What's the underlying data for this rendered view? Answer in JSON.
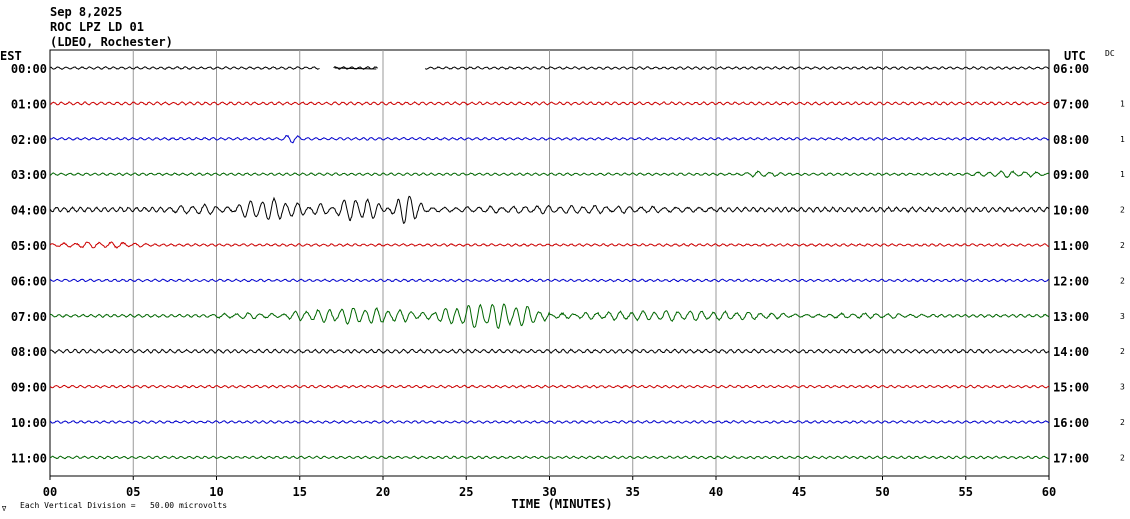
{
  "header": {
    "date": "Sep 8,2025",
    "station": "ROC LPZ LD 01",
    "network": "(LDEO, Rochester)"
  },
  "labels": {
    "left_zone": "EST",
    "right_zone": "UTC",
    "dc": "DC",
    "xlabel": "TIME (MINUTES)",
    "scale_note": "Each Vertical Division =   50.00 microvolts"
  },
  "colors": {
    "trace_cycle": [
      "#000000",
      "#cc0000",
      "#0000cc",
      "#006600"
    ],
    "grid": "#999999",
    "frame": "#000000"
  },
  "chart_data": {
    "type": "line",
    "title": "",
    "xlabel": "TIME (MINUTES)",
    "xlim": [
      0,
      60
    ],
    "x_ticks": [
      "00",
      "05",
      "10",
      "15",
      "20",
      "25",
      "30",
      "35",
      "40",
      "45",
      "50",
      "55",
      "60"
    ],
    "grid": true,
    "rows": [
      {
        "est": "00:00",
        "utc": "06:00",
        "dc": "",
        "color": "#000000",
        "amp": 1.0,
        "gaps": [
          [
            16.2,
            17.0
          ],
          [
            19.7,
            22.5
          ]
        ],
        "events": []
      },
      {
        "est": "01:00",
        "utc": "07:00",
        "dc": "1",
        "color": "#cc0000",
        "amp": 1.2,
        "gaps": [],
        "events": []
      },
      {
        "est": "02:00",
        "utc": "08:00",
        "dc": "1",
        "color": "#0000cc",
        "amp": 1.0,
        "gaps": [],
        "events": [
          {
            "start": 13.8,
            "end": 15.2,
            "amp": 4
          }
        ]
      },
      {
        "est": "03:00",
        "utc": "09:00",
        "dc": "1",
        "color": "#006600",
        "amp": 1.0,
        "gaps": [],
        "events": [
          {
            "start": 41.5,
            "end": 44.0,
            "amp": 3
          },
          {
            "start": 55.0,
            "end": 60.0,
            "amp": 3
          }
        ]
      },
      {
        "est": "04:00",
        "utc": "10:00",
        "dc": "2",
        "color": "#000000",
        "amp": 2.0,
        "gaps": [],
        "events": [
          {
            "start": 7.0,
            "end": 11.0,
            "amp": 5
          },
          {
            "start": 11.0,
            "end": 15.5,
            "amp": 11
          },
          {
            "start": 15.5,
            "end": 17.0,
            "amp": 6
          },
          {
            "start": 17.0,
            "end": 20.0,
            "amp": 12
          },
          {
            "start": 20.5,
            "end": 22.5,
            "amp": 15
          },
          {
            "start": 22.5,
            "end": 40.0,
            "amp": 4
          }
        ]
      },
      {
        "est": "05:00",
        "utc": "11:00",
        "dc": "2",
        "color": "#cc0000",
        "amp": 1.0,
        "gaps": [],
        "events": [
          {
            "start": 0.0,
            "end": 6.0,
            "amp": 3
          }
        ]
      },
      {
        "est": "06:00",
        "utc": "12:00",
        "dc": "2",
        "color": "#0000cc",
        "amp": 1.0,
        "gaps": [],
        "events": []
      },
      {
        "est": "07:00",
        "utc": "13:00",
        "dc": "3",
        "color": "#006600",
        "amp": 1.2,
        "gaps": [],
        "events": [
          {
            "start": 9.5,
            "end": 14.0,
            "amp": 3
          },
          {
            "start": 14.0,
            "end": 23.0,
            "amp": 8
          },
          {
            "start": 23.0,
            "end": 30.0,
            "amp": 13
          },
          {
            "start": 30.0,
            "end": 45.0,
            "amp": 5
          },
          {
            "start": 45.0,
            "end": 53.0,
            "amp": 2.5
          }
        ]
      },
      {
        "est": "08:00",
        "utc": "14:00",
        "dc": "2",
        "color": "#000000",
        "amp": 1.5,
        "gaps": [],
        "events": []
      },
      {
        "est": "09:00",
        "utc": "15:00",
        "dc": "3",
        "color": "#cc0000",
        "amp": 1.0,
        "gaps": [],
        "events": []
      },
      {
        "est": "10:00",
        "utc": "16:00",
        "dc": "2",
        "color": "#0000cc",
        "amp": 1.0,
        "gaps": [],
        "events": []
      },
      {
        "est": "11:00",
        "utc": "17:00",
        "dc": "2",
        "color": "#006600",
        "amp": 1.0,
        "gaps": [],
        "events": []
      }
    ]
  }
}
